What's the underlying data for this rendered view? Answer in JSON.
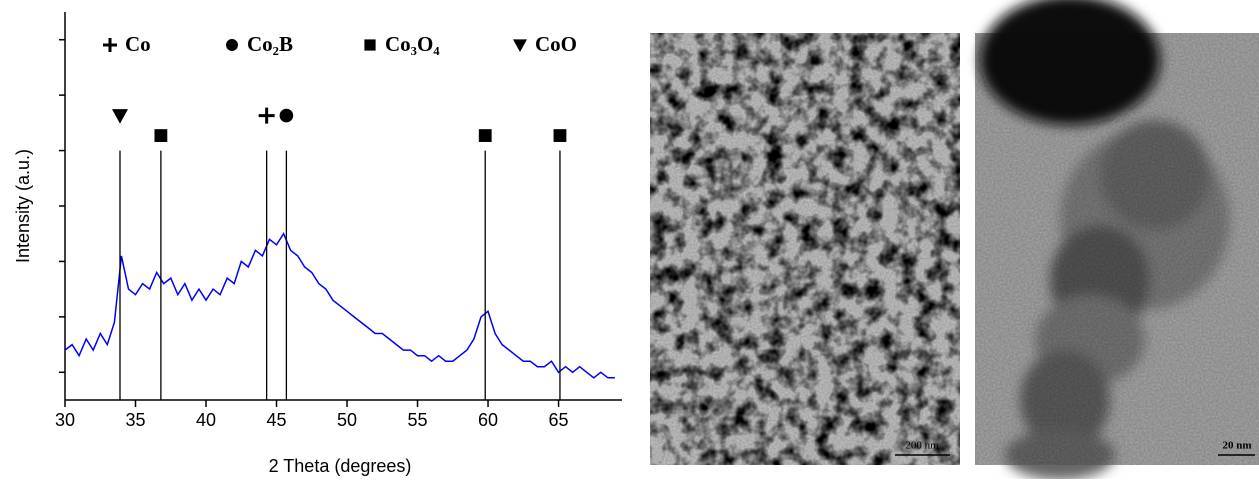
{
  "chart_data": {
    "type": "line",
    "x_label": "2 Theta (degrees)",
    "y_label": "Intensity (a.u.)",
    "x": [
      30,
      30.5,
      31,
      31.5,
      32,
      32.5,
      33,
      33.5,
      34,
      34.5,
      35,
      35.5,
      36,
      36.5,
      37,
      37.5,
      38,
      38.5,
      39,
      39.5,
      40,
      40.5,
      41,
      41.5,
      42,
      42.5,
      43,
      43.5,
      44,
      44.5,
      45,
      45.5,
      46,
      46.5,
      47,
      47.5,
      48,
      48.5,
      49,
      49.5,
      50,
      50.5,
      51,
      51.5,
      52,
      52.5,
      53,
      53.5,
      54,
      54.5,
      55,
      55.5,
      56,
      56.5,
      57,
      57.5,
      58,
      58.5,
      59,
      59.5,
      60,
      60.5,
      61,
      61.5,
      62,
      62.5,
      63,
      63.5,
      64,
      64.5,
      65,
      65.5,
      66,
      66.5,
      67,
      67.5,
      68,
      68.5,
      69
    ],
    "values": [
      0.9,
      1.0,
      0.8,
      1.1,
      0.9,
      1.2,
      1.0,
      1.4,
      2.6,
      2.0,
      1.9,
      2.1,
      2.0,
      2.3,
      2.1,
      2.2,
      1.9,
      2.1,
      1.8,
      2.0,
      1.8,
      2.0,
      1.9,
      2.2,
      2.1,
      2.5,
      2.4,
      2.7,
      2.6,
      2.9,
      2.8,
      3.0,
      2.7,
      2.6,
      2.4,
      2.3,
      2.1,
      2.0,
      1.8,
      1.7,
      1.6,
      1.5,
      1.4,
      1.3,
      1.2,
      1.2,
      1.1,
      1.0,
      0.9,
      0.9,
      0.8,
      0.8,
      0.7,
      0.8,
      0.7,
      0.7,
      0.8,
      0.9,
      1.1,
      1.5,
      1.6,
      1.2,
      1.0,
      0.9,
      0.8,
      0.7,
      0.7,
      0.6,
      0.6,
      0.7,
      0.5,
      0.6,
      0.5,
      0.6,
      0.5,
      0.4,
      0.5,
      0.4,
      0.4
    ],
    "color": "#0000ff",
    "xlim": [
      30,
      69.5
    ],
    "xticks": [
      30,
      35,
      40,
      45,
      50,
      55,
      60,
      65
    ],
    "ylim": [
      0,
      7
    ],
    "yticks": [
      0.5,
      1.5,
      2.5,
      3.5,
      4.5,
      5.5,
      6.5
    ],
    "ytick_labels": false,
    "phases": [
      {
        "name": "Co",
        "marker": "plus"
      },
      {
        "name": "Co₂B",
        "marker": "circle"
      },
      {
        "name": "Co₃O₄",
        "marker": "square"
      },
      {
        "name": "CoO",
        "marker": "triangle"
      }
    ],
    "reference_top": 4.5,
    "reference_lines": [
      {
        "x": 33.9,
        "marker": "triangle"
      },
      {
        "x": 36.8,
        "marker": "square"
      },
      {
        "x": 44.3,
        "marker": "plus"
      },
      {
        "x": 45.7,
        "marker": "circle"
      },
      {
        "x": 59.8,
        "marker": "square"
      },
      {
        "x": 65.1,
        "marker": "square"
      }
    ]
  },
  "images": [
    {
      "scale_label": "200 nm"
    },
    {
      "scale_label": "20 nm"
    }
  ]
}
